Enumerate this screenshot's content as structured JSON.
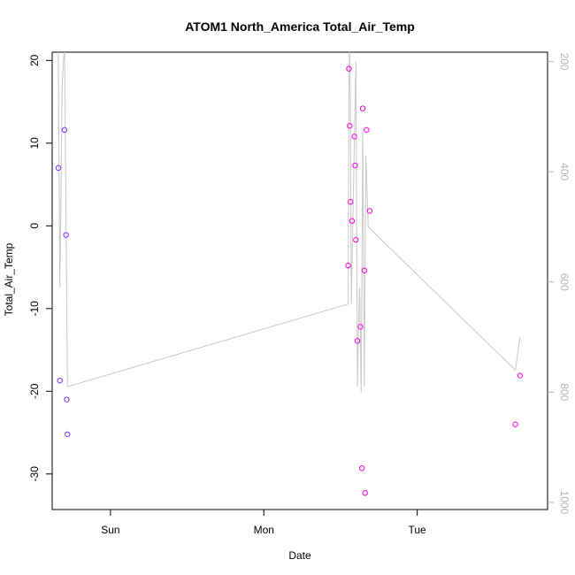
{
  "chart_data": {
    "type": "scatter",
    "title": "ATOM1 North_America Total_Air_Temp",
    "xlabel": "Date",
    "ylabel": "Total_Air_Temp",
    "x_ticks": [
      {
        "label": "Sun",
        "day": 1.0
      },
      {
        "label": "Mon",
        "day": 2.0
      },
      {
        "label": "Tue",
        "day": 3.0
      }
    ],
    "xlim_days": [
      0.62,
      3.85
    ],
    "ylim": [
      -34.3,
      21.0
    ],
    "y_ticks": [
      20,
      10,
      0,
      -10,
      -20,
      -30
    ],
    "y2_ticks": [
      200,
      400,
      600,
      800,
      1000
    ],
    "y2lim": [
      1013,
      183
    ],
    "grid": false,
    "legend": "none",
    "colors": {
      "points_start": "#7b2fff",
      "points_end": "#ff00e0",
      "line": "#c8c8c8",
      "right_axis": "#b3b3b3"
    },
    "series": [
      {
        "values": [
          {
            "day": 0.66,
            "y": 7.0
          },
          {
            "day": 0.67,
            "y": -18.7
          },
          {
            "day": 0.7,
            "y": 11.6
          },
          {
            "day": 0.71,
            "y": -1.1
          },
          {
            "day": 0.715,
            "y": -21.0
          },
          {
            "day": 0.72,
            "y": -25.2
          },
          {
            "day": 2.55,
            "y": -4.8
          },
          {
            "day": 2.555,
            "y": 19.0
          },
          {
            "day": 2.56,
            "y": 12.1
          },
          {
            "day": 2.565,
            "y": 2.9
          },
          {
            "day": 2.575,
            "y": 0.6
          },
          {
            "day": 2.59,
            "y": 10.8
          },
          {
            "day": 2.595,
            "y": 7.3
          },
          {
            "day": 2.6,
            "y": -1.7
          },
          {
            "day": 2.61,
            "y": -13.9
          },
          {
            "day": 2.63,
            "y": -12.2
          },
          {
            "day": 2.64,
            "y": -29.3
          },
          {
            "day": 2.645,
            "y": 14.2
          },
          {
            "day": 2.655,
            "y": -5.4
          },
          {
            "day": 2.66,
            "y": -32.3
          },
          {
            "day": 2.67,
            "y": 11.6
          },
          {
            "day": 2.69,
            "y": 1.8
          },
          {
            "day": 3.64,
            "y": -24.0
          },
          {
            "day": 3.67,
            "y": -18.1
          }
        ]
      },
      {
        "axis": "right",
        "style": "line",
        "values": [
          {
            "day": 0.655,
            "y2": 10
          },
          {
            "day": 0.67,
            "y2": 610
          },
          {
            "day": 0.685,
            "y2": 240
          },
          {
            "day": 0.7,
            "y2": 170
          },
          {
            "day": 0.72,
            "y2": 790
          },
          {
            "day": 2.55,
            "y2": 640
          },
          {
            "day": 2.555,
            "y2": 230
          },
          {
            "day": 2.56,
            "y2": 170
          },
          {
            "day": 2.565,
            "y2": 300
          },
          {
            "day": 2.57,
            "y2": 640
          },
          {
            "day": 2.585,
            "y2": 420
          },
          {
            "day": 2.6,
            "y2": 200
          },
          {
            "day": 2.61,
            "y2": 790
          },
          {
            "day": 2.62,
            "y2": 650
          },
          {
            "day": 2.625,
            "y2": 610
          },
          {
            "day": 2.635,
            "y2": 800
          },
          {
            "day": 2.645,
            "y2": 320
          },
          {
            "day": 2.655,
            "y2": 790
          },
          {
            "day": 2.665,
            "y2": 370
          },
          {
            "day": 2.68,
            "y2": 500
          },
          {
            "day": 3.64,
            "y2": 760
          },
          {
            "day": 3.67,
            "y2": 700
          }
        ]
      }
    ]
  }
}
